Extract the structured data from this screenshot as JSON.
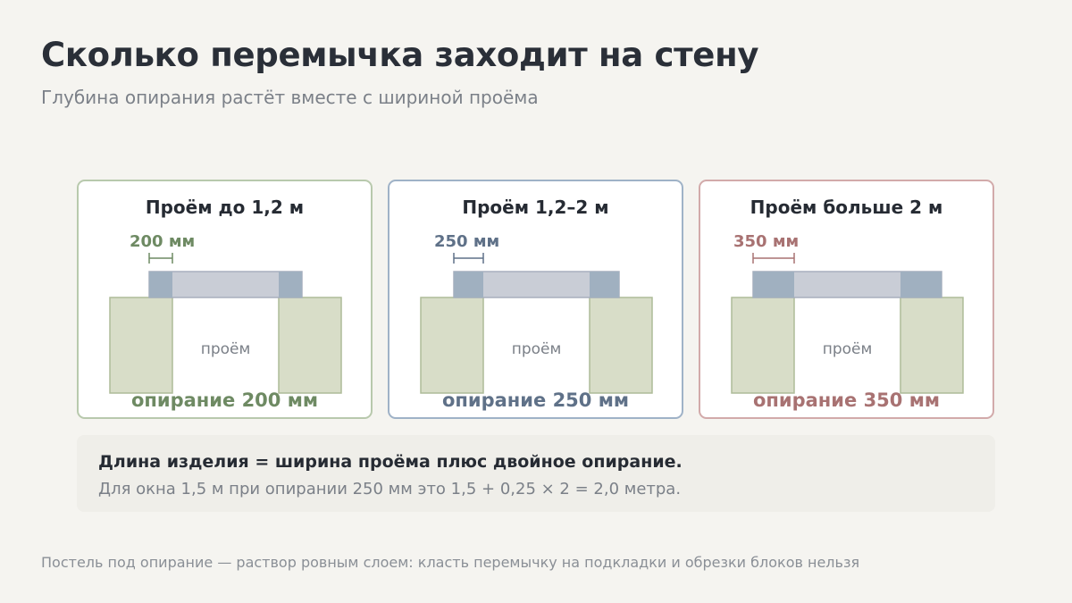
{
  "title": "Сколько перемычка заходит на стену",
  "subtitle": "Глубина опирания растёт вместе с шириной проёма",
  "opening_label": "проём",
  "cards": [
    {
      "title": "Проём до 1,2 м",
      "dimension_label": "200 мм",
      "caption": "опирание 200 мм",
      "bearing_mm": 200,
      "accent_color": "#6e8a63",
      "border_color": "#b8c9ad"
    },
    {
      "title": "Проём 1,2–2 м",
      "dimension_label": "250 мм",
      "caption": "опирание 250 мм",
      "bearing_mm": 250,
      "accent_color": "#5f7188",
      "border_color": "#9fb2c7"
    },
    {
      "title": "Проём больше 2 м",
      "dimension_label": "350 мм",
      "caption": "опирание 350 мм",
      "bearing_mm": 350,
      "accent_color": "#a87272",
      "border_color": "#d2aaaa"
    }
  ],
  "colors": {
    "wall_fill": "#d8ddc8",
    "wall_stroke": "#aebb98",
    "lintel_fill": "#c9cdd6",
    "lintel_stroke": "#a8afbd",
    "bearing_fill": "#a0b0c0"
  },
  "note": {
    "main": "Длина изделия = ширина проёма плюс двойное опирание.",
    "sub": "Для окна 1,5 м при опирании 250 мм это 1,5 + 0,25 × 2 = 2,0 метра."
  },
  "footer": "Постель под опирание — раствор ровным слоем: класть перемычку на подкладки и обрезки блоков нельзя"
}
